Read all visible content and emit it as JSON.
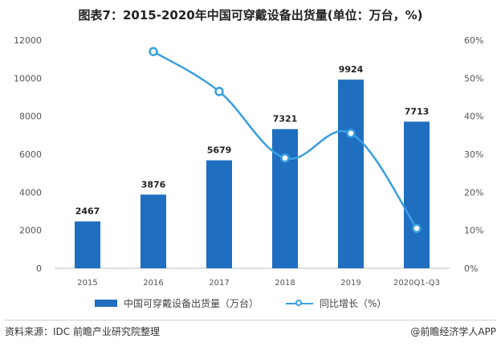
{
  "title": "图表7：2015-2020年中国可穿戴设备出货量(单位：万台，%)",
  "footer": {
    "source": "资料来源：IDC 前瞻产业研究院整理",
    "brand": "@前瞻经济学人APP"
  },
  "chart_data": {
    "type": "bar",
    "categories": [
      "2015",
      "2016",
      "2017",
      "2018",
      "2019",
      "2020Q1-Q3"
    ],
    "series": [
      {
        "name": "中国可穿戴设备出货量（万台）",
        "type": "bar",
        "axis": "left",
        "values": [
          2467,
          3876,
          5679,
          7321,
          9924,
          7713
        ],
        "labels": [
          "2467",
          "3876",
          "5679",
          "7321",
          "9924",
          "7713"
        ],
        "color": "#1f6ec0"
      },
      {
        "name": "同比增长（%）",
        "type": "line",
        "axis": "right",
        "values": [
          null,
          57,
          46.5,
          29,
          35.5,
          10.5
        ],
        "color": "#3aa0e0"
      }
    ],
    "y_left": {
      "min": 0,
      "max": 12000,
      "ticks": [
        "0",
        "2000",
        "4000",
        "6000",
        "8000",
        "10000",
        "12000"
      ]
    },
    "y_right": {
      "min": 0,
      "max": 60,
      "ticks": [
        "0%",
        "10%",
        "20%",
        "30%",
        "40%",
        "50%",
        "60%"
      ]
    },
    "grid": false,
    "legend": "bottom"
  }
}
